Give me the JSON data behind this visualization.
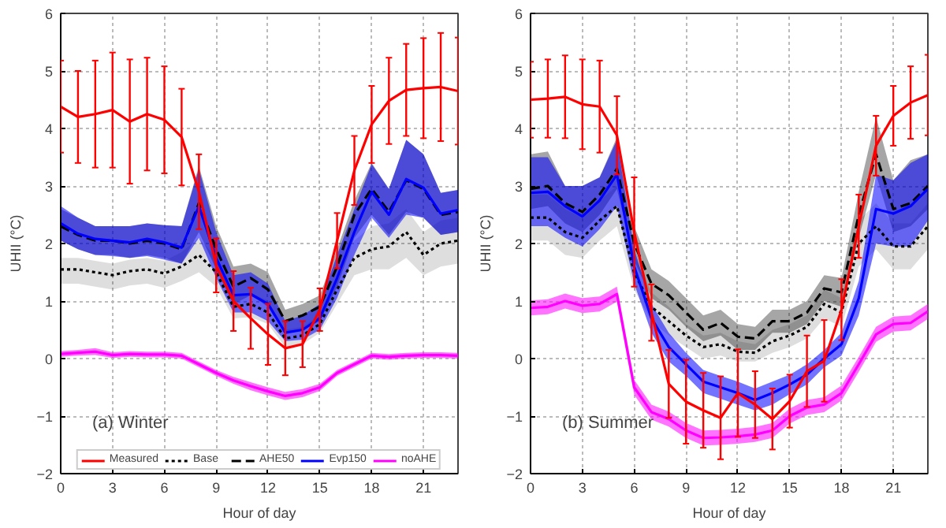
{
  "chart_data": [
    {
      "type": "line",
      "x": [
        0,
        1,
        2,
        3,
        4,
        5,
        6,
        7,
        8,
        9,
        10,
        11,
        12,
        13,
        14,
        15,
        16,
        17,
        18,
        19,
        20,
        21,
        22,
        23
      ],
      "xlabel": "Hour of day",
      "ylabel": "UHII (°C)",
      "xlim": [
        0,
        23
      ],
      "ylim": [
        -2,
        6
      ],
      "xticks": [
        0,
        3,
        6,
        9,
        12,
        15,
        18,
        21
      ],
      "yticks": [
        -2,
        -1,
        0,
        1,
        2,
        3,
        4,
        5,
        6
      ],
      "grid": true,
      "legend": "bottom",
      "annotations": [
        "(a) Winter"
      ],
      "series": [
        {
          "name": "Base",
          "color": "#000000",
          "line_style": "dotted",
          "values": [
            1.55,
            1.55,
            1.5,
            1.45,
            1.52,
            1.55,
            1.48,
            1.6,
            1.8,
            1.5,
            0.9,
            0.95,
            0.8,
            0.35,
            0.4,
            0.6,
            1.2,
            1.75,
            1.9,
            1.95,
            2.2,
            1.8,
            2.0,
            2.05
          ],
          "lower": [
            1.3,
            1.3,
            1.25,
            1.2,
            1.27,
            1.3,
            1.23,
            1.35,
            1.5,
            1.25,
            0.7,
            0.72,
            0.6,
            0.2,
            0.25,
            0.45,
            0.95,
            1.45,
            1.55,
            1.55,
            1.75,
            1.45,
            1.6,
            1.65
          ],
          "upper": [
            1.75,
            1.75,
            1.7,
            1.65,
            1.72,
            1.75,
            1.7,
            1.85,
            2.1,
            1.75,
            1.1,
            1.15,
            1.0,
            0.5,
            0.55,
            0.75,
            1.45,
            2.05,
            2.3,
            2.35,
            2.6,
            2.2,
            2.4,
            2.45
          ]
        },
        {
          "name": "AHE50",
          "color": "#000000",
          "line_style": "dashed",
          "values": [
            2.3,
            2.15,
            2.05,
            2.05,
            2.0,
            2.05,
            2.0,
            1.9,
            2.7,
            1.9,
            1.25,
            1.4,
            1.2,
            0.65,
            0.75,
            0.9,
            1.6,
            2.5,
            2.95,
            2.55,
            3.1,
            2.95,
            2.5,
            2.55
          ],
          "lower": [
            2.05,
            1.9,
            1.8,
            1.8,
            1.75,
            1.8,
            1.75,
            1.65,
            2.2,
            1.55,
            0.95,
            1.1,
            0.9,
            0.45,
            0.5,
            0.65,
            1.25,
            2.1,
            2.5,
            2.15,
            2.55,
            2.45,
            2.15,
            2.2
          ],
          "upper": [
            2.6,
            2.45,
            2.3,
            2.3,
            2.3,
            2.35,
            2.32,
            2.3,
            3.35,
            2.3,
            1.6,
            1.65,
            1.5,
            0.85,
            0.95,
            1.1,
            1.9,
            2.75,
            3.4,
            2.95,
            3.8,
            3.55,
            2.88,
            2.93
          ]
        },
        {
          "name": "Evp150",
          "color": "#0000ff",
          "line_style": "solid",
          "values": [
            2.35,
            2.17,
            2.08,
            2.05,
            2.02,
            2.08,
            2.02,
            1.93,
            2.65,
            1.75,
            1.1,
            1.12,
            0.95,
            0.45,
            0.5,
            0.7,
            1.4,
            2.2,
            2.9,
            2.5,
            3.12,
            2.97,
            2.52,
            2.58
          ],
          "lower": [
            2.05,
            1.9,
            1.8,
            1.78,
            1.75,
            1.78,
            1.72,
            1.65,
            2.1,
            1.4,
            0.8,
            0.8,
            0.65,
            0.3,
            0.33,
            0.5,
            1.05,
            1.8,
            2.45,
            2.1,
            2.5,
            2.45,
            2.15,
            2.2
          ],
          "upper": [
            2.65,
            2.45,
            2.3,
            2.3,
            2.3,
            2.35,
            2.32,
            2.3,
            3.3,
            2.2,
            1.45,
            1.5,
            1.3,
            0.65,
            0.75,
            0.95,
            1.8,
            2.6,
            3.38,
            2.95,
            3.8,
            3.55,
            2.88,
            2.93
          ]
        },
        {
          "name": "noAHE",
          "color": "#ff00ff",
          "line_style": "solid",
          "values": [
            0.08,
            0.1,
            0.12,
            0.06,
            0.08,
            0.07,
            0.07,
            0.05,
            -0.1,
            -0.25,
            -0.38,
            -0.48,
            -0.57,
            -0.65,
            -0.6,
            -0.5,
            -0.25,
            -0.1,
            0.05,
            0.03,
            0.05,
            0.06,
            0.06,
            0.05
          ],
          "lower": [
            0.03,
            0.05,
            0.06,
            0.01,
            0.03,
            0.02,
            0.02,
            0.0,
            -0.15,
            -0.3,
            -0.44,
            -0.55,
            -0.64,
            -0.72,
            -0.67,
            -0.56,
            -0.3,
            -0.15,
            0.0,
            -0.02,
            0.0,
            0.01,
            0.01,
            0.0
          ],
          "upper": [
            0.13,
            0.15,
            0.18,
            0.11,
            0.13,
            0.12,
            0.12,
            0.1,
            -0.05,
            -0.2,
            -0.32,
            -0.41,
            -0.5,
            -0.58,
            -0.53,
            -0.44,
            -0.2,
            -0.05,
            0.1,
            0.08,
            0.1,
            0.11,
            0.11,
            0.1
          ]
        },
        {
          "name": "Measured",
          "color": "#ff0000",
          "line_style": "solid",
          "values": [
            4.38,
            4.2,
            4.25,
            4.32,
            4.12,
            4.25,
            4.15,
            3.85,
            2.9,
            1.62,
            1.0,
            0.7,
            0.42,
            0.18,
            0.25,
            0.85,
            2.05,
            3.27,
            4.07,
            4.48,
            4.67,
            4.7,
            4.72,
            4.65
          ],
          "errors": [
            0.8,
            0.8,
            0.93,
            1.0,
            1.08,
            0.98,
            0.93,
            0.84,
            0.65,
            0.47,
            0.52,
            0.53,
            0.53,
            0.47,
            0.4,
            0.37,
            0.48,
            0.6,
            0.67,
            0.75,
            0.8,
            0.87,
            0.94,
            0.93
          ]
        }
      ]
    },
    {
      "type": "line",
      "x": [
        0,
        1,
        2,
        3,
        4,
        5,
        6,
        7,
        8,
        9,
        10,
        11,
        12,
        13,
        14,
        15,
        16,
        17,
        18,
        19,
        20,
        21,
        22,
        23
      ],
      "xlabel": "Hour of day",
      "ylabel": "UHII (°C)",
      "xlim": [
        0,
        23
      ],
      "ylim": [
        -2,
        6
      ],
      "xticks": [
        0,
        3,
        6,
        9,
        12,
        15,
        18,
        21
      ],
      "yticks": [
        -2,
        -1,
        0,
        1,
        2,
        3,
        4,
        5,
        6
      ],
      "grid": true,
      "annotations": [
        "(b) Summer"
      ],
      "series": [
        {
          "color": "#000000",
          "line_style": "dotted",
          "values": [
            2.45,
            2.45,
            2.2,
            2.1,
            2.4,
            2.65,
            1.5,
            0.9,
            0.65,
            0.4,
            0.2,
            0.25,
            0.12,
            0.1,
            0.3,
            0.4,
            0.55,
            0.95,
            0.8,
            2.0,
            2.3,
            1.95,
            1.95,
            2.3
          ],
          "lower": [
            2.05,
            2.05,
            1.8,
            1.75,
            2.05,
            2.3,
            1.2,
            0.65,
            0.4,
            0.2,
            0.0,
            0.05,
            -0.05,
            -0.05,
            0.1,
            0.2,
            0.35,
            0.7,
            0.55,
            1.6,
            1.9,
            1.55,
            1.55,
            1.9
          ],
          "upper": [
            2.85,
            2.85,
            2.6,
            2.45,
            2.75,
            3.0,
            1.8,
            1.15,
            0.9,
            0.6,
            0.4,
            0.45,
            0.3,
            0.25,
            0.5,
            0.6,
            0.75,
            1.2,
            1.05,
            2.4,
            2.7,
            2.35,
            2.35,
            2.7
          ]
        },
        {
          "color": "#000000",
          "line_style": "dashed",
          "values": [
            2.95,
            3.0,
            2.7,
            2.55,
            2.85,
            3.3,
            2.0,
            1.3,
            1.1,
            0.8,
            0.5,
            0.62,
            0.38,
            0.35,
            0.65,
            0.65,
            0.8,
            1.22,
            1.15,
            2.5,
            3.55,
            2.6,
            2.7,
            3.0
          ],
          "lower": [
            2.6,
            2.65,
            2.35,
            2.2,
            2.5,
            2.95,
            1.7,
            1.05,
            0.85,
            0.55,
            0.3,
            0.4,
            0.15,
            0.15,
            0.45,
            0.45,
            0.6,
            1.0,
            0.9,
            2.1,
            3.2,
            2.2,
            2.3,
            2.6
          ],
          "upper": [
            3.55,
            3.6,
            3.0,
            3.0,
            3.15,
            3.85,
            2.3,
            1.55,
            1.35,
            1.05,
            0.75,
            0.85,
            0.6,
            0.55,
            0.85,
            0.85,
            1.0,
            1.45,
            1.4,
            2.9,
            4.2,
            3.1,
            3.45,
            3.55
          ]
        },
        {
          "color": "#0000ff",
          "line_style": "solid",
          "values": [
            2.88,
            2.9,
            2.65,
            2.47,
            2.75,
            3.2,
            1.6,
            0.7,
            0.2,
            -0.1,
            -0.4,
            -0.5,
            -0.6,
            -0.72,
            -0.6,
            -0.45,
            -0.28,
            0.0,
            0.25,
            1.05,
            2.6,
            2.52,
            2.65,
            2.95
          ],
          "lower": [
            2.3,
            2.3,
            2.1,
            1.95,
            2.25,
            2.65,
            1.3,
            0.45,
            -0.05,
            -0.3,
            -0.6,
            -0.7,
            -0.8,
            -0.9,
            -0.8,
            -0.62,
            -0.45,
            -0.15,
            0.05,
            0.75,
            2.0,
            1.95,
            1.95,
            2.4
          ],
          "upper": [
            3.5,
            3.5,
            3.0,
            3.0,
            3.15,
            3.8,
            1.9,
            0.95,
            0.45,
            0.1,
            -0.2,
            -0.3,
            -0.4,
            -0.52,
            -0.4,
            -0.28,
            -0.1,
            0.15,
            0.45,
            1.35,
            3.2,
            3.1,
            3.4,
            3.55
          ]
        },
        {
          "color": "#ff00ff",
          "line_style": "solid",
          "values": [
            0.88,
            0.9,
            1.0,
            0.92,
            0.95,
            1.12,
            -0.5,
            -0.93,
            -1.05,
            -1.25,
            -1.38,
            -1.37,
            -1.35,
            -1.32,
            -1.25,
            -1.0,
            -0.85,
            -0.8,
            -0.6,
            -0.1,
            0.42,
            0.6,
            0.62,
            0.82
          ],
          "lower": [
            0.75,
            0.77,
            0.87,
            0.79,
            0.82,
            0.99,
            -0.63,
            -1.06,
            -1.18,
            -1.38,
            -1.51,
            -1.5,
            -1.48,
            -1.45,
            -1.38,
            -1.13,
            -0.98,
            -0.93,
            -0.73,
            -0.23,
            0.29,
            0.47,
            0.49,
            0.69
          ],
          "upper": [
            1.01,
            1.03,
            1.13,
            1.05,
            1.08,
            1.25,
            -0.37,
            -0.8,
            -0.92,
            -1.12,
            -1.25,
            -1.24,
            -1.22,
            -1.19,
            -1.12,
            -0.87,
            -0.72,
            -0.67,
            -0.47,
            0.03,
            0.55,
            0.73,
            0.75,
            0.95
          ]
        },
        {
          "color": "#ff0000",
          "line_style": "solid",
          "values": [
            4.5,
            4.52,
            4.55,
            4.42,
            4.38,
            3.88,
            2.2,
            0.8,
            -0.44,
            -0.75,
            -0.9,
            -1.03,
            -0.6,
            -0.8,
            -1.05,
            -0.74,
            -0.22,
            -0.04,
            0.85,
            2.3,
            3.7,
            4.22,
            4.45,
            4.58
          ],
          "errors": [
            0.66,
            0.68,
            0.72,
            0.78,
            0.8,
            0.68,
            0.95,
            0.49,
            0.59,
            0.73,
            0.65,
            0.72,
            0.76,
            0.58,
            0.53,
            0.46,
            0.62,
            0.71,
            0.53,
            0.55,
            0.52,
            0.52,
            0.63,
            0.7
          ]
        }
      ]
    }
  ]
}
